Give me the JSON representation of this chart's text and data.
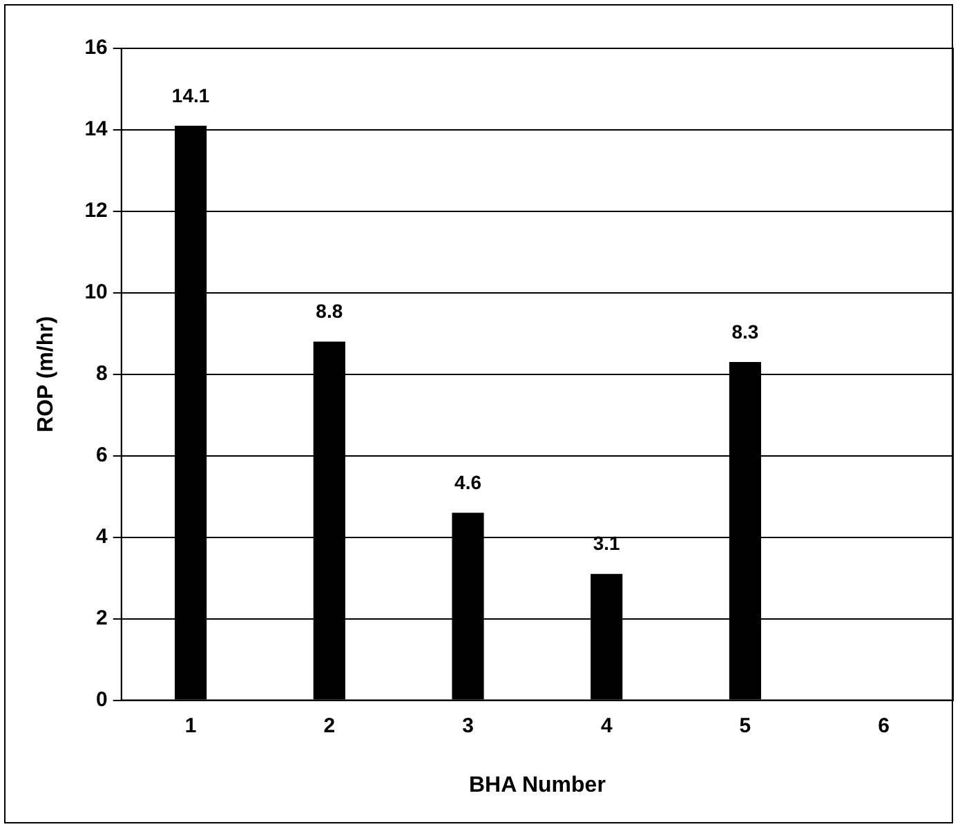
{
  "chart_data": {
    "type": "bar",
    "xlabel": "BHA Number",
    "ylabel": "ROP (m/hr)",
    "categories": [
      "1",
      "2",
      "3",
      "4",
      "5",
      "6"
    ],
    "values": [
      14.1,
      8.8,
      4.6,
      3.1,
      8.3,
      null
    ],
    "color": "#000000",
    "ylim": [
      0,
      16
    ],
    "yticks": [
      0,
      2,
      4,
      6,
      8,
      10,
      12,
      14,
      16
    ],
    "grid": "y",
    "data_labels": true
  }
}
